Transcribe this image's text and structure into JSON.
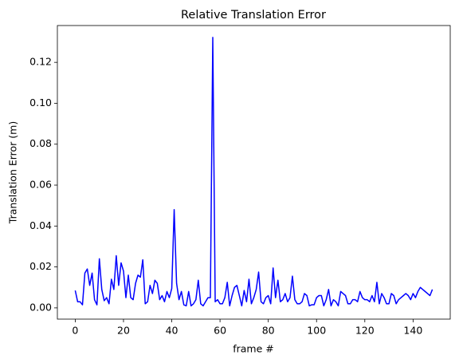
{
  "chart_data": {
    "type": "line",
    "title": "Relative Translation Error",
    "xlabel": "frame #",
    "ylabel": "Translation Error (m)",
    "x": [
      0,
      1,
      2,
      3,
      4,
      5,
      6,
      7,
      8,
      9,
      10,
      11,
      12,
      13,
      14,
      15,
      16,
      17,
      18,
      19,
      20,
      21,
      22,
      23,
      24,
      25,
      26,
      27,
      28,
      29,
      30,
      31,
      32,
      33,
      34,
      35,
      36,
      37,
      38,
      39,
      40,
      41,
      42,
      43,
      44,
      45,
      46,
      47,
      48,
      49,
      50,
      51,
      52,
      53,
      54,
      55,
      56,
      57,
      58,
      59,
      60,
      61,
      62,
      63,
      64,
      65,
      66,
      67,
      68,
      69,
      70,
      71,
      72,
      73,
      74,
      75,
      76,
      77,
      78,
      79,
      80,
      81,
      82,
      83,
      84,
      85,
      86,
      87,
      88,
      89,
      90,
      91,
      92,
      93,
      94,
      95,
      96,
      97,
      98,
      99,
      100,
      101,
      102,
      103,
      104,
      105,
      106,
      107,
      108,
      109,
      110,
      111,
      112,
      113,
      114,
      115,
      116,
      117,
      118,
      119,
      120,
      121,
      122,
      123,
      124,
      125,
      126,
      127,
      128,
      129,
      130,
      131,
      132,
      133,
      134,
      135,
      136,
      137,
      138,
      139,
      140,
      141,
      142,
      143,
      144,
      145,
      146,
      147,
      148
    ],
    "series": [
      {
        "name": "Relative Translation Error",
        "color": "#0000ff",
        "values": [
          0.0085,
          0.003,
          0.003,
          0.0015,
          0.017,
          0.019,
          0.011,
          0.017,
          0.004,
          0.0015,
          0.024,
          0.009,
          0.0035,
          0.005,
          0.002,
          0.014,
          0.009,
          0.0255,
          0.011,
          0.022,
          0.018,
          0.005,
          0.016,
          0.005,
          0.004,
          0.012,
          0.016,
          0.015,
          0.0235,
          0.002,
          0.003,
          0.011,
          0.007,
          0.0135,
          0.012,
          0.004,
          0.006,
          0.003,
          0.008,
          0.005,
          0.0095,
          0.048,
          0.012,
          0.004,
          0.008,
          0.0015,
          0.001,
          0.008,
          0.001,
          0.002,
          0.004,
          0.0135,
          0.002,
          0.001,
          0.003,
          0.005,
          0.005,
          0.1322,
          0.003,
          0.004,
          0.002,
          0.002,
          0.005,
          0.0125,
          0.001,
          0.006,
          0.01,
          0.011,
          0.006,
          0.001,
          0.0085,
          0.003,
          0.014,
          0.002,
          0.005,
          0.009,
          0.0175,
          0.003,
          0.002,
          0.005,
          0.006,
          0.002,
          0.0195,
          0.005,
          0.0135,
          0.003,
          0.004,
          0.007,
          0.003,
          0.005,
          0.0155,
          0.004,
          0.002,
          0.002,
          0.003,
          0.007,
          0.006,
          0.001,
          0.0015,
          0.0015,
          0.005,
          0.006,
          0.006,
          0.001,
          0.004,
          0.009,
          0.001,
          0.004,
          0.003,
          0.001,
          0.008,
          0.007,
          0.006,
          0.002,
          0.002,
          0.004,
          0.004,
          0.003,
          0.008,
          0.005,
          0.004,
          0.004,
          0.003,
          0.006,
          0.003,
          0.0125,
          0.002,
          0.007,
          0.005,
          0.002,
          0.002,
          0.007,
          0.006,
          0.002,
          0.004,
          0.005,
          0.006,
          0.007,
          0.006,
          0.004,
          0.007,
          0.005,
          0.008,
          0.01,
          0.009,
          0.008,
          0.007,
          0.006,
          0.009
        ]
      }
    ],
    "xlim": [
      -7.4,
      155.4
    ],
    "xticks": [
      0,
      20,
      40,
      60,
      80,
      100,
      120,
      140
    ],
    "ylim": [
      -0.0055,
      0.138
    ],
    "yticks": [
      {
        "value": 0,
        "label": "0.00"
      },
      {
        "value": 0.02,
        "label": "0.02"
      },
      {
        "value": 0.04,
        "label": "0.04"
      },
      {
        "value": 0.06,
        "label": "0.06"
      },
      {
        "value": 0.08,
        "label": "0.08"
      },
      {
        "value": 0.1,
        "label": "0.10"
      },
      {
        "value": 0.12,
        "label": "0.12"
      }
    ]
  }
}
